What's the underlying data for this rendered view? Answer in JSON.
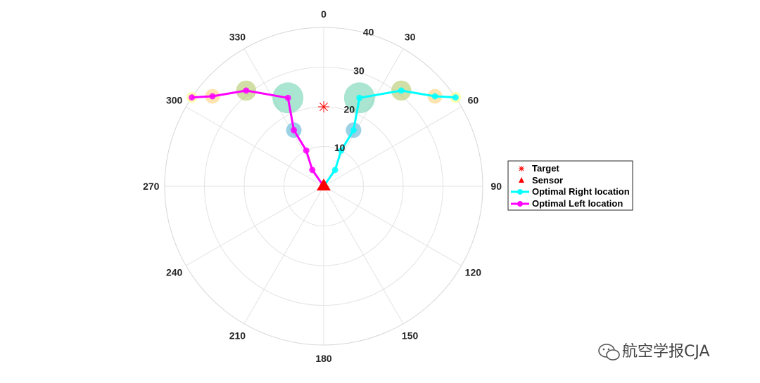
{
  "chart_data": {
    "type": "scatter",
    "coordinate_system": "polar",
    "theta_zero_location": "top",
    "theta_direction": "clockwise",
    "theta_ticks": [
      "0",
      "30",
      "60",
      "90",
      "120",
      "150",
      "180",
      "210",
      "240",
      "270",
      "300",
      "330"
    ],
    "theta_tick_values": [
      0,
      30,
      60,
      90,
      120,
      150,
      180,
      210,
      240,
      270,
      300,
      330
    ],
    "r_ticks": [
      "10",
      "20",
      "30",
      "40"
    ],
    "r_tick_values": [
      10,
      20,
      30,
      40
    ],
    "rlim": [
      0,
      40
    ],
    "grid": true,
    "legend": {
      "placement": "right",
      "entries": [
        "Target",
        "Sensor",
        "Optimal Right location",
        "Optimal Left location"
      ]
    },
    "target": {
      "name": "Target",
      "theta": 0,
      "r": 20,
      "color": "#ff0000",
      "marker": "asterisk"
    },
    "sensor": {
      "name": "Sensor",
      "theta": 0,
      "r": 0,
      "color": "#ff0000",
      "marker": "triangle"
    },
    "series": [
      {
        "name": "Optimal Right location",
        "color": "#00ffff",
        "points": [
          {
            "theta": 0,
            "r": 0
          },
          {
            "theta": 35,
            "r": 5
          },
          {
            "theta": 26,
            "r": 10
          },
          {
            "theta": 28,
            "r": 16
          },
          {
            "theta": 22,
            "r": 24
          },
          {
            "theta": 39,
            "r": 31
          },
          {
            "theta": 51,
            "r": 36
          },
          {
            "theta": 56,
            "r": 40
          }
        ]
      },
      {
        "name": "Optimal Left location",
        "color": "#ff00ff",
        "points": [
          {
            "theta": 0,
            "r": 0
          },
          {
            "theta": 325,
            "r": 5
          },
          {
            "theta": 334,
            "r": 10
          },
          {
            "theta": 332,
            "r": 16
          },
          {
            "theta": 338,
            "r": 24
          },
          {
            "theta": 321,
            "r": 31
          },
          {
            "theta": 309,
            "r": 36
          },
          {
            "theta": 304,
            "r": 40
          }
        ]
      }
    ],
    "bubbles": [
      {
        "theta": 28,
        "r": 16,
        "size": 1.0,
        "color": "#5ab4d6"
      },
      {
        "theta": 22,
        "r": 24,
        "size": 2.0,
        "color": "#6fd4b0"
      },
      {
        "theta": 39,
        "r": 31,
        "size": 1.3,
        "color": "#b3c96a"
      },
      {
        "theta": 51,
        "r": 36,
        "size": 0.95,
        "color": "#ffd27a"
      },
      {
        "theta": 56,
        "r": 40,
        "size": 0.7,
        "color": "#ffff80"
      },
      {
        "theta": 332,
        "r": 16,
        "size": 1.0,
        "color": "#5ab4d6"
      },
      {
        "theta": 338,
        "r": 24,
        "size": 2.0,
        "color": "#6fd4b0"
      },
      {
        "theta": 321,
        "r": 31,
        "size": 1.3,
        "color": "#b3c96a"
      },
      {
        "theta": 309,
        "r": 36,
        "size": 0.95,
        "color": "#ffd27a"
      },
      {
        "theta": 304,
        "r": 40,
        "size": 0.7,
        "color": "#ffff80"
      }
    ]
  },
  "watermark": {
    "text": "航空学报CJA",
    "icon": "wechat-icon"
  }
}
